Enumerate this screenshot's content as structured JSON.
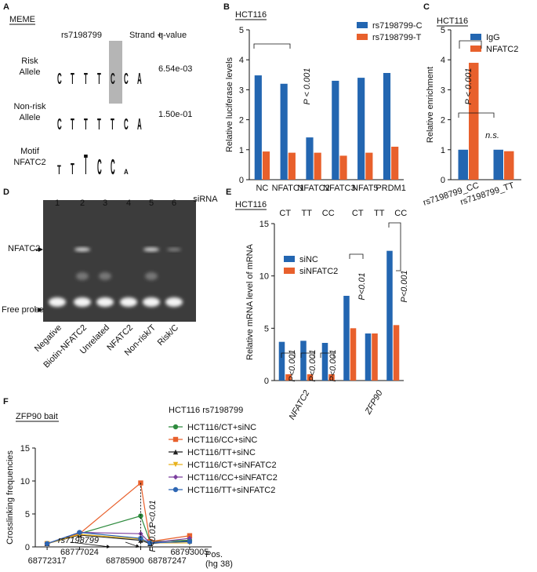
{
  "panel_labels": [
    "A",
    "B",
    "C",
    "D",
    "E",
    "F"
  ],
  "motif": {
    "source": "MEME",
    "headers": [
      "rs7198799",
      "Strand +",
      "q-value"
    ],
    "rows": [
      {
        "label": [
          "Risk",
          "Allele"
        ],
        "letters": [
          "C",
          "T",
          "T",
          "T",
          "C",
          "C",
          "A"
        ],
        "q_value": "6.54e-03"
      },
      {
        "label": [
          "Non-risk",
          "Allele"
        ],
        "letters": [
          "C",
          "T",
          "T",
          "T",
          "T",
          "C",
          "A"
        ],
        "q_value": "1.50e-01"
      },
      {
        "label": [
          "Motif",
          "NFATC2"
        ],
        "letters": [
          "T",
          "T",
          "T",
          "C",
          "C",
          "A"
        ]
      }
    ]
  },
  "gel": {
    "lanes": [
      "1",
      "2",
      "3",
      "4",
      "5",
      "6"
    ],
    "band_labels": [
      "NFATC2",
      "Free probe"
    ],
    "lane_labels": [
      "Negative",
      "Biotin-NFATC2",
      "Unrelated",
      "NFATC2",
      "Non-risk/T",
      "Risk/C"
    ]
  },
  "chart_data": [
    {
      "type": "bar",
      "title": "HCT116",
      "ylabel": "Relative luciferase levels",
      "xlabel": "siRNA",
      "categories": [
        "NC",
        "NFATC1",
        "NFATC2",
        "NFATC3",
        "NFAT5",
        "PRDM1"
      ],
      "series": [
        {
          "name": "rs7198799-C",
          "color": "#2366b1",
          "values": [
            3.48,
            3.2,
            1.41,
            3.3,
            3.4,
            3.56
          ]
        },
        {
          "name": "rs7198799-T",
          "color": "#e8602c",
          "values": [
            0.94,
            0.9,
            0.9,
            0.8,
            0.9,
            1.1
          ]
        }
      ],
      "ylim": [
        0,
        5
      ],
      "yticks": [
        0,
        1,
        2,
        3,
        4,
        5
      ],
      "annotations": [
        "P < 0.001"
      ]
    },
    {
      "type": "bar",
      "title": "HCT116",
      "ylabel": "Relative enrichment",
      "categories": [
        "rs7198799_CC",
        "rs7198799_TT"
      ],
      "series": [
        {
          "name": "IgG",
          "color": "#2366b1",
          "values": [
            1,
            1
          ]
        },
        {
          "name": "NFATC2",
          "color": "#e8602c",
          "values": [
            3.9,
            0.95
          ]
        }
      ],
      "ylim": [
        0,
        5
      ],
      "yticks": [
        0,
        1,
        2,
        3,
        4,
        5
      ],
      "annotations": [
        "P < 0.001",
        "n.s."
      ]
    },
    {
      "type": "bar",
      "title": "HCT116",
      "ylabel": "Relative mRNA level of mRNA",
      "categories": [
        "CT",
        "TT",
        "CC",
        "CT",
        "TT",
        "CC"
      ],
      "group_labels": [
        "NFATC2",
        "ZFP90"
      ],
      "series": [
        {
          "name": "siNC",
          "color": "#2366b1",
          "values": [
            3.7,
            3.8,
            3.6,
            8.1,
            4.5,
            12.4
          ]
        },
        {
          "name": "siNFATC2",
          "color": "#e8602c",
          "values": [
            0.6,
            0.6,
            0.6,
            5.0,
            4.5,
            5.3
          ]
        }
      ],
      "ylim": [
        0,
        15
      ],
      "yticks": [
        0,
        5,
        10,
        15
      ],
      "annotations": [
        "P<0.001",
        "P<0.001",
        "P<0.001",
        "P<0.01",
        "P<0.001"
      ]
    },
    {
      "type": "line",
      "title": "ZFP90 bait",
      "ylabel": "Crosslinking frequencies",
      "xlabel": [
        "Pos.",
        "(hg 38)"
      ],
      "legend_title": "HCT116 rs7198799",
      "x": [
        68772317,
        68777024,
        68785900,
        68787247,
        68793005
      ],
      "series": [
        {
          "name": "HCT116/CT+siNC",
          "color": "#2e8b3e",
          "marker": "circle",
          "values": [
            0.5,
            2.0,
            4.7,
            0.8,
            1.0
          ]
        },
        {
          "name": "HCT116/CC+siNC",
          "color": "#e8602c",
          "marker": "square",
          "values": [
            0.5,
            2.0,
            9.7,
            0.8,
            1.7
          ]
        },
        {
          "name": "HCT116/TT+siNC",
          "color": "#222222",
          "marker": "triangle",
          "values": [
            0.5,
            1.8,
            1.0,
            0.5,
            0.9
          ]
        },
        {
          "name": "HCT116/CT+siNFATC2",
          "color": "#e8b21c",
          "marker": "triangle-down",
          "values": [
            0.5,
            1.9,
            1.2,
            0.6,
            0.6
          ]
        },
        {
          "name": "HCT116/CC+siNFATC2",
          "color": "#7b3f9e",
          "marker": "diamond",
          "values": [
            0.5,
            2.2,
            2.0,
            0.6,
            1.3
          ]
        },
        {
          "name": "HCT116/TT+siNFATC2",
          "color": "#2d66b3",
          "marker": "circle",
          "values": [
            0.5,
            2.2,
            1.3,
            0.6,
            0.8
          ]
        }
      ],
      "xlim": [
        68770600,
        68796200
      ],
      "xticks": [
        68772317,
        68777024,
        68785900,
        68787247,
        68793005
      ],
      "ylim": [
        0,
        15
      ],
      "yticks": [
        0,
        5,
        10,
        15
      ],
      "annotations": [
        "rs7198799",
        "P<0.01",
        "P<0.01"
      ]
    }
  ]
}
